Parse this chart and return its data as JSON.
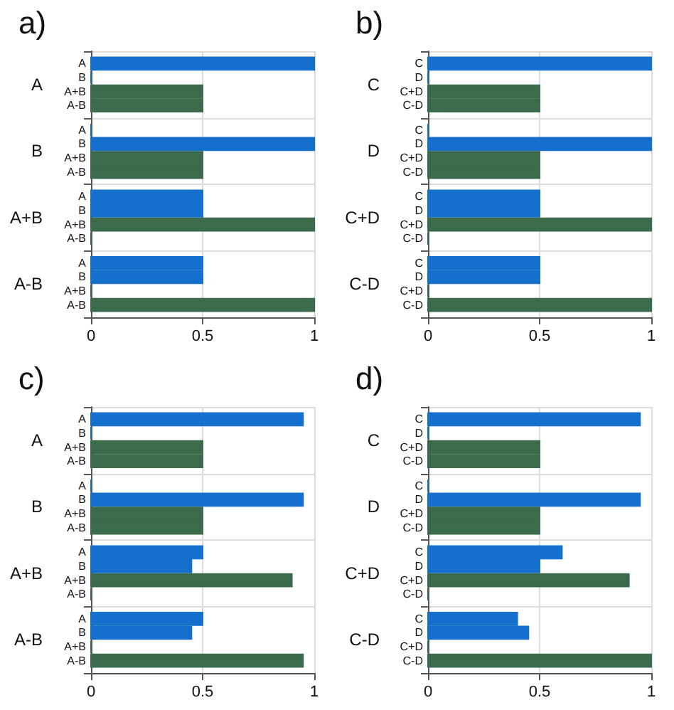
{
  "chart_data": [
    {
      "type": "bar",
      "title": "a)",
      "orientation": "horizontal",
      "categories": [
        "A",
        "B",
        "A+B",
        "A-B"
      ],
      "series": [
        {
          "name": "A",
          "color": "#1470cc",
          "values": [
            1,
            0,
            0.5,
            0.5
          ]
        },
        {
          "name": "B",
          "color": "#1470cc",
          "values": [
            0,
            1,
            0.5,
            0.5
          ]
        },
        {
          "name": "A+B",
          "color": "#3b6b4b",
          "values": [
            0.5,
            0.5,
            1,
            0
          ]
        },
        {
          "name": "A-B",
          "color": "#3b6b4b",
          "values": [
            0.5,
            0.5,
            0,
            1
          ]
        }
      ],
      "xlim": [
        0,
        1
      ],
      "xticks": [
        0,
        0.5,
        1
      ],
      "grid": true
    },
    {
      "type": "bar",
      "title": "b)",
      "orientation": "horizontal",
      "categories": [
        "C",
        "D",
        "C+D",
        "C-D"
      ],
      "series": [
        {
          "name": "C",
          "color": "#1470cc",
          "values": [
            1,
            0,
            0.5,
            0.5
          ]
        },
        {
          "name": "D",
          "color": "#1470cc",
          "values": [
            0,
            1,
            0.5,
            0.5
          ]
        },
        {
          "name": "C+D",
          "color": "#3b6b4b",
          "values": [
            0.5,
            0.5,
            1,
            0
          ]
        },
        {
          "name": "C-D",
          "color": "#3b6b4b",
          "values": [
            0.5,
            0.5,
            0,
            1
          ]
        }
      ],
      "xlim": [
        0,
        1
      ],
      "xticks": [
        0,
        0.5,
        1
      ],
      "grid": true
    },
    {
      "type": "bar",
      "title": "c)",
      "orientation": "horizontal",
      "categories": [
        "A",
        "B",
        "A+B",
        "A-B"
      ],
      "series": [
        {
          "name": "A",
          "color": "#1470cc",
          "values": [
            0.95,
            0,
            0.5,
            0.5
          ]
        },
        {
          "name": "B",
          "color": "#1470cc",
          "values": [
            0,
            0.95,
            0.45,
            0.45
          ]
        },
        {
          "name": "A+B",
          "color": "#3b6b4b",
          "values": [
            0.5,
            0.5,
            0.9,
            0
          ]
        },
        {
          "name": "A-B",
          "color": "#3b6b4b",
          "values": [
            0.5,
            0.5,
            0,
            0.95
          ]
        }
      ],
      "xlim": [
        0,
        1
      ],
      "xticks": [
        0,
        0.5,
        1
      ],
      "grid": true
    },
    {
      "type": "bar",
      "title": "d)",
      "orientation": "horizontal",
      "categories": [
        "C",
        "D",
        "C+D",
        "C-D"
      ],
      "series": [
        {
          "name": "C",
          "color": "#1470cc",
          "values": [
            0.95,
            0,
            0.6,
            0.4
          ]
        },
        {
          "name": "D",
          "color": "#1470cc",
          "values": [
            0,
            0.95,
            0.5,
            0.45
          ]
        },
        {
          "name": "C+D",
          "color": "#3b6b4b",
          "values": [
            0.5,
            0.5,
            0.9,
            0
          ]
        },
        {
          "name": "C-D",
          "color": "#3b6b4b",
          "values": [
            0.5,
            0.5,
            0,
            1
          ]
        }
      ],
      "xlim": [
        0,
        1
      ],
      "xticks": [
        0,
        0.5,
        1
      ],
      "grid": true
    }
  ]
}
